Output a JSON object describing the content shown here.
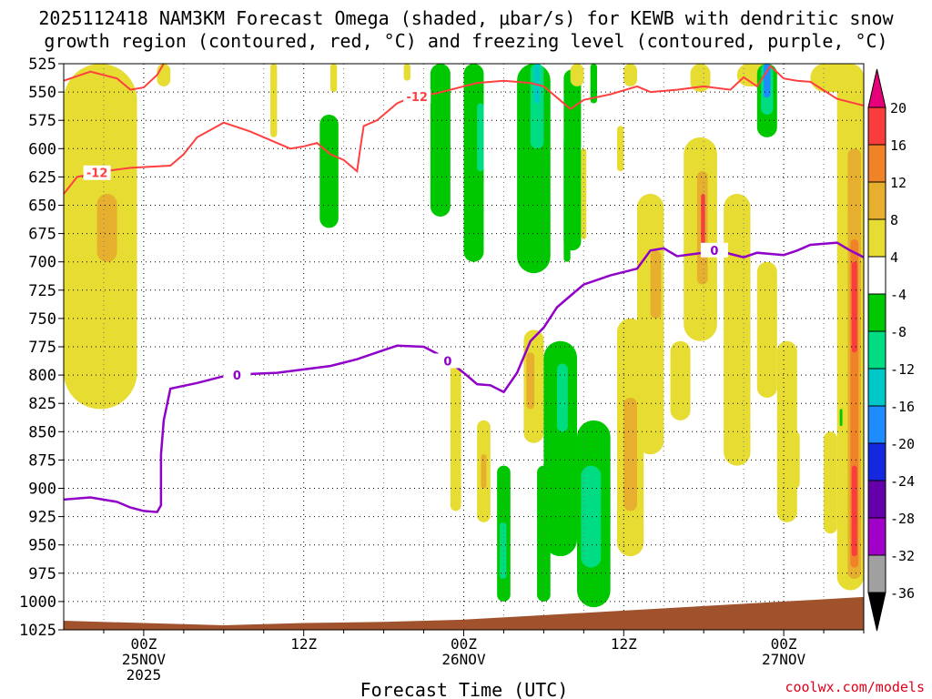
{
  "chart_data": {
    "type": "heatmap",
    "title_line1": "2025112418 NAM3KM Forecast Omega (shaded, μbar/s) for KEWB with dendritic snow",
    "title_line2": "growth region (contoured, red, °C) and freezing level (contoured, purple, °C)",
    "xlabel": "Forecast Time (UTC)",
    "ylabel": "",
    "watermark": "coolwx.com/models",
    "xlim_hours": [
      -6,
      54
    ],
    "ylim_hpa": [
      525,
      1025
    ],
    "y_ticks": [
      525,
      550,
      575,
      600,
      625,
      650,
      675,
      700,
      725,
      750,
      775,
      800,
      825,
      850,
      875,
      900,
      925,
      950,
      975,
      1000,
      1025
    ],
    "x_ticks": [
      {
        "hour": 0,
        "labels": [
          "00Z",
          "25NOV",
          "2025"
        ]
      },
      {
        "hour": 12,
        "labels": [
          "12Z"
        ]
      },
      {
        "hour": 24,
        "labels": [
          "00Z",
          "26NOV"
        ]
      },
      {
        "hour": 36,
        "labels": [
          "12Z"
        ]
      },
      {
        "hour": 48,
        "labels": [
          "00Z",
          "27NOV"
        ]
      }
    ],
    "colorbar": {
      "levels": [
        -36,
        -32,
        -28,
        -24,
        -20,
        -16,
        -12,
        -8,
        -4,
        4,
        8,
        12,
        16,
        20
      ],
      "label_levels": [
        20,
        16,
        12,
        8,
        4,
        -4,
        -8,
        -12,
        -16,
        -20,
        -24,
        -28,
        -32,
        -36
      ],
      "colors": [
        "#000000",
        "#a0a0a0",
        "#a000c8",
        "#6400aa",
        "#1428e0",
        "#1e8cff",
        "#00c8c8",
        "#00dc82",
        "#00c800",
        "#ffffff",
        "#e6dc32",
        "#e6af2d",
        "#f08228",
        "#fa3c3c",
        "#e6007a"
      ]
    },
    "omega_cells": [
      {
        "t0": -6,
        "t1": -0.5,
        "p0": 525,
        "p1": 830,
        "v": 5
      },
      {
        "t0": -3.5,
        "t1": -2,
        "p0": 640,
        "p1": 700,
        "v": 9
      },
      {
        "t0": 1,
        "t1": 2,
        "p0": 525,
        "p1": 545,
        "v": 5
      },
      {
        "t0": 9.5,
        "t1": 10,
        "p0": 525,
        "p1": 590,
        "v": 5
      },
      {
        "t0": 14,
        "t1": 14.5,
        "p0": 525,
        "p1": 550,
        "v": 5
      },
      {
        "t0": 19.5,
        "t1": 20,
        "p0": 525,
        "p1": 540,
        "v": 5
      },
      {
        "t0": 13.2,
        "t1": 14.6,
        "p0": 570,
        "p1": 670,
        "v": -6
      },
      {
        "t0": 21.5,
        "t1": 23,
        "p0": 525,
        "p1": 660,
        "v": -6
      },
      {
        "t0": 24,
        "t1": 25.5,
        "p0": 525,
        "p1": 700,
        "v": -6
      },
      {
        "t0": 25,
        "t1": 25.5,
        "p0": 560,
        "p1": 620,
        "v": -10
      },
      {
        "t0": 28,
        "t1": 30.5,
        "p0": 525,
        "p1": 710,
        "v": -6
      },
      {
        "t0": 29,
        "t1": 30,
        "p0": 525,
        "p1": 600,
        "v": -10
      },
      {
        "t0": 29.3,
        "t1": 29.7,
        "p0": 525,
        "p1": 560,
        "v": -14
      },
      {
        "t0": 31.5,
        "t1": 32.8,
        "p0": 530,
        "p1": 690,
        "v": -6
      },
      {
        "t0": 33.5,
        "t1": 34,
        "p0": 525,
        "p1": 560,
        "v": -6
      },
      {
        "t0": 31.5,
        "t1": 32,
        "p0": 590,
        "p1": 700,
        "v": -6
      },
      {
        "t0": 32.8,
        "t1": 33.2,
        "p0": 600,
        "p1": 680,
        "v": 5
      },
      {
        "t0": 35.5,
        "t1": 36,
        "p0": 580,
        "p1": 620,
        "v": 5
      },
      {
        "t0": 32,
        "t1": 33,
        "p0": 525,
        "p1": 545,
        "v": 5
      },
      {
        "t0": 36,
        "t1": 37,
        "p0": 525,
        "p1": 545,
        "v": 5
      },
      {
        "t0": 41,
        "t1": 42.5,
        "p0": 525,
        "p1": 550,
        "v": 5
      },
      {
        "t0": 44.5,
        "t1": 47,
        "p0": 525,
        "p1": 545,
        "v": 5
      },
      {
        "t0": 50,
        "t1": 53.5,
        "p0": 525,
        "p1": 550,
        "v": 5
      },
      {
        "t0": 46,
        "t1": 47.5,
        "p0": 525,
        "p1": 590,
        "v": -6
      },
      {
        "t0": 46.3,
        "t1": 47.2,
        "p0": 525,
        "p1": 570,
        "v": -10
      },
      {
        "t0": 46.5,
        "t1": 47,
        "p0": 525,
        "p1": 555,
        "v": -20
      },
      {
        "t0": 40.5,
        "t1": 43,
        "p0": 590,
        "p1": 770,
        "v": 5
      },
      {
        "t0": 41.5,
        "t1": 42.3,
        "p0": 620,
        "p1": 720,
        "v": 10
      },
      {
        "t0": 41.8,
        "t1": 42.1,
        "p0": 640,
        "p1": 690,
        "v": 18
      },
      {
        "t0": 37,
        "t1": 39,
        "p0": 640,
        "p1": 870,
        "v": 5
      },
      {
        "t0": 38,
        "t1": 38.8,
        "p0": 690,
        "p1": 750,
        "v": 9
      },
      {
        "t0": 35.5,
        "t1": 37.5,
        "p0": 750,
        "p1": 960,
        "v": 5
      },
      {
        "t0": 36,
        "t1": 37,
        "p0": 820,
        "p1": 920,
        "v": 9
      },
      {
        "t0": 43.5,
        "t1": 45.5,
        "p0": 640,
        "p1": 880,
        "v": 5
      },
      {
        "t0": 46,
        "t1": 47.5,
        "p0": 700,
        "p1": 820,
        "v": 5
      },
      {
        "t0": 39.5,
        "t1": 41,
        "p0": 770,
        "p1": 840,
        "v": 5
      },
      {
        "t0": 47.5,
        "t1": 49,
        "p0": 770,
        "p1": 930,
        "v": 5
      },
      {
        "t0": 48.5,
        "t1": 49.2,
        "p0": 850,
        "p1": 900,
        "v": 5
      },
      {
        "t0": 51,
        "t1": 52,
        "p0": 850,
        "p1": 940,
        "v": 5
      },
      {
        "t0": 52,
        "t1": 54,
        "p0": 525,
        "p1": 990,
        "v": 5
      },
      {
        "t0": 52.8,
        "t1": 53.8,
        "p0": 600,
        "p1": 980,
        "v": 10
      },
      {
        "t0": 53,
        "t1": 53.6,
        "p0": 680,
        "p1": 970,
        "v": 14
      },
      {
        "t0": 53.1,
        "t1": 53.5,
        "p0": 700,
        "p1": 780,
        "v": 18
      },
      {
        "t0": 53.1,
        "t1": 53.5,
        "p0": 880,
        "p1": 960,
        "v": 18
      },
      {
        "t0": 52.2,
        "t1": 52.4,
        "p0": 830,
        "p1": 845,
        "v": -6
      },
      {
        "t0": 23,
        "t1": 23.8,
        "p0": 790,
        "p1": 920,
        "v": 5
      },
      {
        "t0": 25,
        "t1": 26,
        "p0": 840,
        "p1": 930,
        "v": 5
      },
      {
        "t0": 25.3,
        "t1": 25.7,
        "p0": 870,
        "p1": 900,
        "v": 9
      },
      {
        "t0": 26.5,
        "t1": 27.5,
        "p0": 880,
        "p1": 1000,
        "v": -6
      },
      {
        "t0": 26.7,
        "t1": 27.2,
        "p0": 930,
        "p1": 980,
        "v": -10
      },
      {
        "t0": 29.5,
        "t1": 30.5,
        "p0": 880,
        "p1": 1000,
        "v": -6
      },
      {
        "t0": 28.5,
        "t1": 30,
        "p0": 760,
        "p1": 860,
        "v": 5
      },
      {
        "t0": 28.7,
        "t1": 29.3,
        "p0": 780,
        "p1": 830,
        "v": 9
      },
      {
        "t0": 30,
        "t1": 32.5,
        "p0": 770,
        "p1": 960,
        "v": -6
      },
      {
        "t0": 31,
        "t1": 31.8,
        "p0": 790,
        "p1": 850,
        "v": -10
      },
      {
        "t0": 32.5,
        "t1": 35,
        "p0": 840,
        "p1": 1005,
        "v": -6
      },
      {
        "t0": 32.8,
        "t1": 34.3,
        "p0": 880,
        "p1": 970,
        "v": -10
      }
    ],
    "ground": [
      [
        -6,
        1017
      ],
      [
        0,
        1019
      ],
      [
        6,
        1021
      ],
      [
        12,
        1019
      ],
      [
        18,
        1018
      ],
      [
        24,
        1016
      ],
      [
        30,
        1012
      ],
      [
        36,
        1008
      ],
      [
        42,
        1004
      ],
      [
        48,
        1000
      ],
      [
        54,
        996
      ]
    ],
    "dgz_line": {
      "name": "-12 °C isotherm",
      "color": "#ff4040",
      "label_text": "-12",
      "label_hours": [
        -3.5,
        20.5
      ],
      "points": [
        [
          -6,
          640
        ],
        [
          -5,
          625
        ],
        [
          -3,
          620
        ],
        [
          -1,
          617
        ],
        [
          2,
          615
        ],
        [
          3,
          605
        ],
        [
          4,
          590
        ],
        [
          6,
          577
        ],
        [
          8,
          585
        ],
        [
          10,
          595
        ],
        [
          11,
          600
        ],
        [
          12,
          598
        ],
        [
          13,
          595
        ],
        [
          13.5,
          600
        ],
        [
          14,
          605
        ],
        [
          15,
          610
        ],
        [
          16,
          620
        ],
        [
          16.3,
          595
        ],
        [
          16.5,
          580
        ],
        [
          17.5,
          575
        ],
        [
          19,
          560
        ],
        [
          20,
          555
        ],
        [
          21,
          553
        ],
        [
          22,
          551
        ],
        [
          23,
          548
        ],
        [
          25,
          542
        ],
        [
          27,
          540
        ],
        [
          29,
          542
        ],
        [
          30,
          545
        ],
        [
          31,
          555
        ],
        [
          32,
          565
        ],
        [
          33,
          557
        ],
        [
          35,
          552
        ],
        [
          37,
          545
        ],
        [
          38,
          550
        ],
        [
          40,
          548
        ],
        [
          42,
          545
        ],
        [
          44,
          548
        ],
        [
          45,
          537
        ],
        [
          46,
          545
        ],
        [
          47,
          527
        ],
        [
          48,
          538
        ],
        [
          49,
          540
        ],
        [
          50,
          541
        ],
        [
          52,
          556
        ],
        [
          54,
          562
        ]
      ]
    },
    "dgz_line_top": {
      "color": "#ff4040",
      "points": [
        [
          -6,
          540
        ],
        [
          -4,
          532
        ],
        [
          -2,
          538
        ],
        [
          -1,
          548
        ],
        [
          0,
          546
        ],
        [
          1,
          535
        ],
        [
          1.5,
          525
        ]
      ]
    },
    "freezing_line": {
      "name": "0 °C isotherm",
      "color": "#9000c8",
      "label_text": "0",
      "label_hours": [
        7,
        22.8,
        42.8
      ],
      "points": [
        [
          -6,
          910
        ],
        [
          -4,
          908
        ],
        [
          -2,
          912
        ],
        [
          -1,
          917
        ],
        [
          0,
          920
        ],
        [
          1,
          921
        ],
        [
          1.3,
          915
        ],
        [
          1.3,
          870
        ],
        [
          1.5,
          840
        ],
        [
          2,
          812
        ],
        [
          4,
          807
        ],
        [
          6,
          801
        ],
        [
          8,
          799
        ],
        [
          10,
          798
        ],
        [
          12,
          795
        ],
        [
          14,
          792
        ],
        [
          16,
          786
        ],
        [
          18,
          778
        ],
        [
          19,
          774
        ],
        [
          21,
          775
        ],
        [
          22,
          781
        ],
        [
          23,
          789
        ],
        [
          24,
          798
        ],
        [
          25,
          808
        ],
        [
          26,
          809
        ],
        [
          27,
          815
        ],
        [
          28,
          798
        ],
        [
          29,
          770
        ],
        [
          30,
          758
        ],
        [
          31,
          740
        ],
        [
          32,
          730
        ],
        [
          33,
          720
        ],
        [
          35,
          712
        ],
        [
          37,
          706
        ],
        [
          38,
          690
        ],
        [
          39,
          688
        ],
        [
          40,
          695
        ],
        [
          42,
          692
        ],
        [
          43,
          689
        ],
        [
          44,
          693
        ],
        [
          45,
          696
        ],
        [
          46,
          692
        ],
        [
          48,
          694
        ],
        [
          49,
          690
        ],
        [
          50,
          685
        ],
        [
          52,
          683
        ],
        [
          53,
          690
        ],
        [
          54,
          696
        ]
      ]
    }
  }
}
